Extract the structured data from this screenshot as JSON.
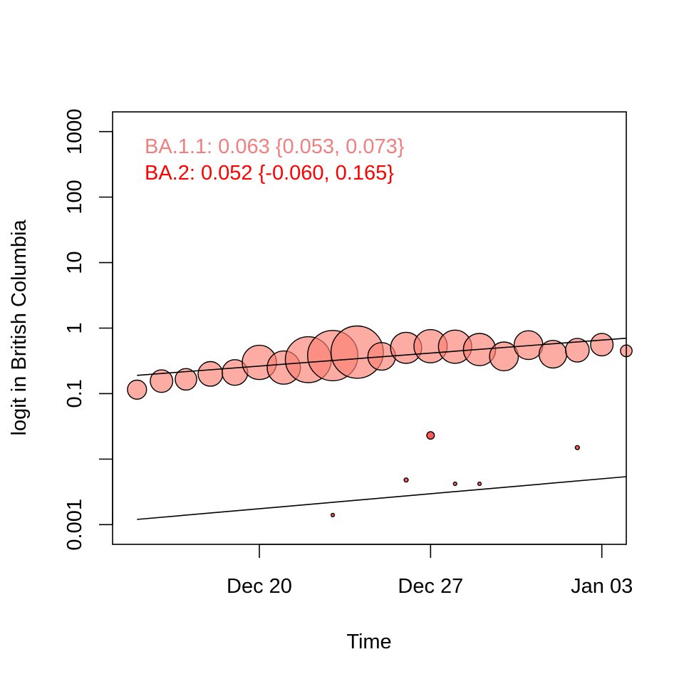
{
  "chart_data": {
    "type": "scatter",
    "title": "",
    "xlabel": "Time",
    "ylabel": "logit in British Columbia",
    "y_scale": "log",
    "xlim": [
      "2021-12-14",
      "2022-01-04"
    ],
    "ylim": [
      0.0005,
      2000
    ],
    "x_tick_labels": [
      {
        "x": "2021-12-20",
        "label": "Dec 20"
      },
      {
        "x": "2021-12-27",
        "label": "Dec 27"
      },
      {
        "x": "2022-01-03",
        "label": "Jan 03"
      }
    ],
    "y_tick_labels": [
      {
        "y": 0.001,
        "label": "0.001"
      },
      {
        "y": 0.01,
        "label": ""
      },
      {
        "y": 0.1,
        "label": "0.1"
      },
      {
        "y": 1,
        "label": "1"
      },
      {
        "y": 10,
        "label": "10"
      },
      {
        "y": 100,
        "label": "100"
      },
      {
        "y": 1000,
        "label": "1000"
      }
    ],
    "grid": false,
    "annotations": [
      {
        "text": "BA.1.1: 0.063 {0.053, 0.073}",
        "color": "#F08080"
      },
      {
        "text": "BA.2: 0.052 {-0.060, 0.165}",
        "color": "#FF0000"
      }
    ],
    "series": [
      {
        "fill_color": "#FA8072",
        "fill_opacity": 0.65,
        "points": [
          {
            "x": "2021-12-15",
            "y": 0.115,
            "size": 0.56
          },
          {
            "x": "2021-12-16",
            "y": 0.155,
            "size": 0.66
          },
          {
            "x": "2021-12-17",
            "y": 0.165,
            "size": 0.63
          },
          {
            "x": "2021-12-18",
            "y": 0.2,
            "size": 0.72
          },
          {
            "x": "2021-12-19",
            "y": 0.21,
            "size": 0.75
          },
          {
            "x": "2021-12-20",
            "y": 0.3,
            "size": 1.0
          },
          {
            "x": "2021-12-21",
            "y": 0.25,
            "size": 0.97
          },
          {
            "x": "2021-12-22",
            "y": 0.33,
            "size": 1.34
          },
          {
            "x": "2021-12-23",
            "y": 0.38,
            "size": 1.47
          },
          {
            "x": "2021-12-24",
            "y": 0.43,
            "size": 1.53
          },
          {
            "x": "2021-12-25",
            "y": 0.37,
            "size": 0.81
          },
          {
            "x": "2021-12-26",
            "y": 0.5,
            "size": 0.91
          },
          {
            "x": "2021-12-27",
            "y": 0.53,
            "size": 0.97
          },
          {
            "x": "2021-12-28",
            "y": 0.52,
            "size": 0.97
          },
          {
            "x": "2021-12-29",
            "y": 0.47,
            "size": 0.94
          },
          {
            "x": "2021-12-30",
            "y": 0.37,
            "size": 0.84
          },
          {
            "x": "2021-12-31",
            "y": 0.55,
            "size": 0.84
          },
          {
            "x": "2022-01-01",
            "y": 0.4,
            "size": 0.81
          },
          {
            "x": "2022-01-02",
            "y": 0.46,
            "size": 0.69
          },
          {
            "x": "2022-01-03",
            "y": 0.56,
            "size": 0.66
          },
          {
            "x": "2022-01-04",
            "y": 0.45,
            "size": 0.34
          }
        ],
        "fit": {
          "x": [
            "2021-12-15",
            "2022-01-04"
          ],
          "y": [
            0.19,
            0.7
          ]
        }
      },
      {
        "fill_color": "#FF0000",
        "fill_opacity": 0.65,
        "points": [
          {
            "x": "2021-12-23",
            "y": 0.0014,
            "size": 0.1
          },
          {
            "x": "2021-12-26",
            "y": 0.0048,
            "size": 0.12
          },
          {
            "x": "2021-12-27",
            "y": 0.023,
            "size": 0.22
          },
          {
            "x": "2021-12-28",
            "y": 0.0042,
            "size": 0.1
          },
          {
            "x": "2021-12-29",
            "y": 0.0042,
            "size": 0.1
          },
          {
            "x": "2022-01-02",
            "y": 0.015,
            "size": 0.12
          }
        ],
        "fit": {
          "x": [
            "2021-12-15",
            "2022-01-04"
          ],
          "y": [
            0.0012,
            0.0054
          ]
        }
      }
    ]
  }
}
